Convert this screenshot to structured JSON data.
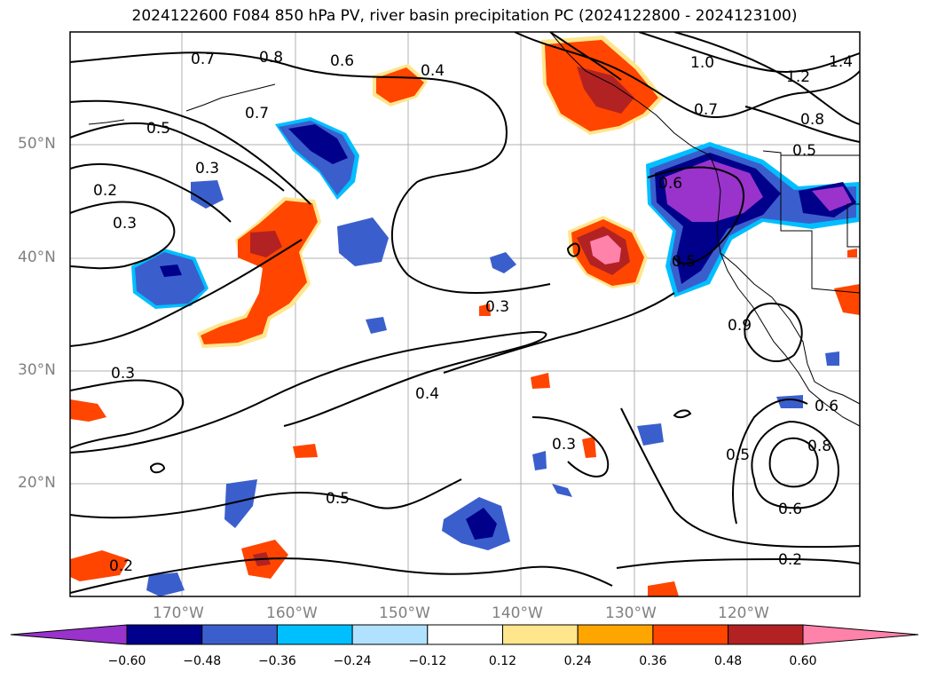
{
  "title": "2024122600 F084 850 hPa PV, river basin precipitation PC (2024122800 - 2024123100)",
  "map": {
    "lat_ticks": [
      "50°N",
      "40°N",
      "30°N",
      "20°N"
    ],
    "lon_ticks": [
      "170°W",
      "160°W",
      "150°W",
      "140°W",
      "130°W",
      "120°W"
    ],
    "contour_labels": [
      "0.7",
      "0.8",
      "0.6",
      "0.4",
      "1.0",
      "1.2",
      "1.4",
      "0.7",
      "0.7",
      "0.8",
      "0.5",
      "0.3",
      "0.2",
      "0.3",
      "0.6",
      "0.5",
      "0.5",
      "0.3",
      "0.3",
      "0.4",
      "0.3",
      "0.5",
      "0.5",
      "0.8",
      "0.6",
      "0.2",
      "0.2",
      "0.9",
      "0.6"
    ],
    "colors": {
      "contour": "#000000",
      "coastline": "#000000",
      "grid": "#b0b0b0"
    }
  },
  "colorbar": {
    "ticks": [
      "−0.60",
      "−0.48",
      "−0.36",
      "−0.24",
      "−0.12",
      "0.12",
      "0.24",
      "0.36",
      "0.48",
      "0.60"
    ],
    "levels": [
      {
        "color": "#9933cc"
      },
      {
        "color": "#00008b"
      },
      {
        "color": "#3a5fcd"
      },
      {
        "color": "#00bfff"
      },
      {
        "color": "#b0e2ff"
      },
      {
        "color": "#ffffff"
      },
      {
        "color": "#ffe68c"
      },
      {
        "color": "#ffa500"
      },
      {
        "color": "#ff4500"
      },
      {
        "color": "#b22222"
      },
      {
        "color": "#ff82ab"
      }
    ]
  }
}
